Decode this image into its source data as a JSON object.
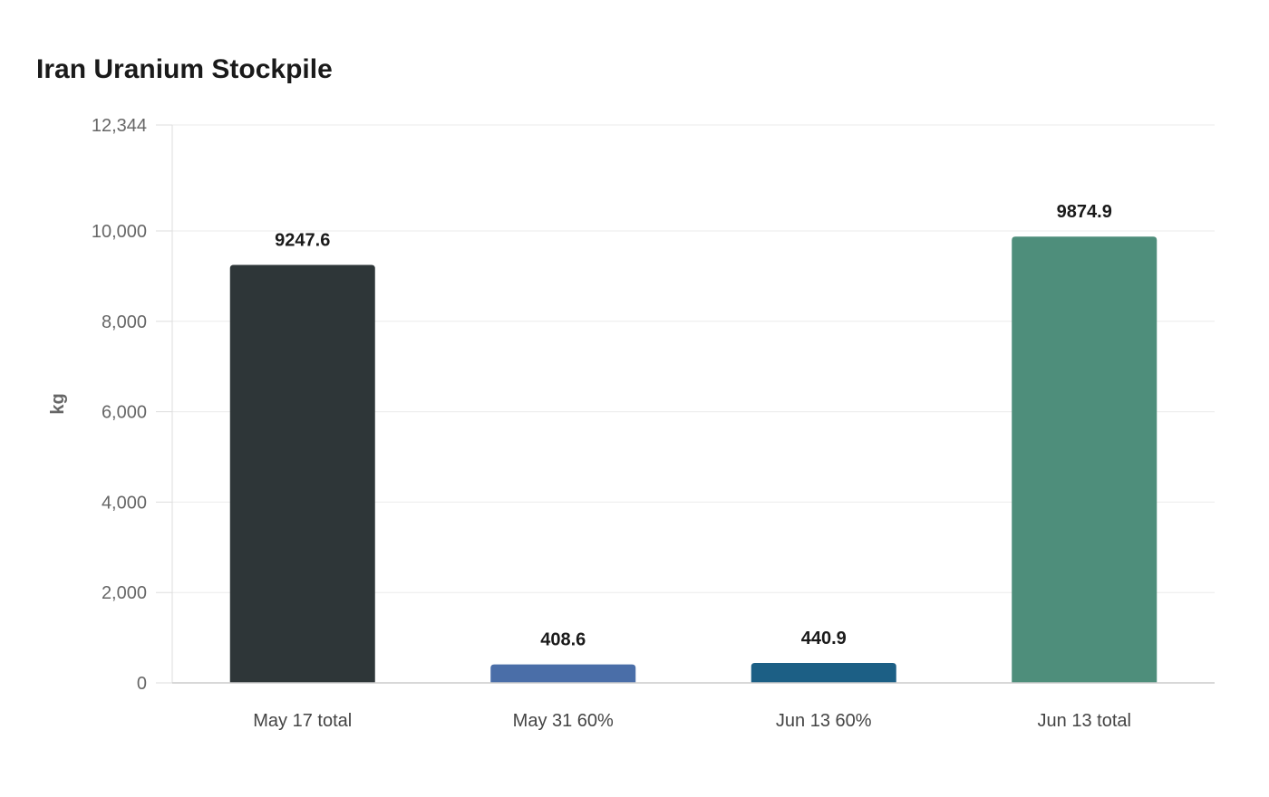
{
  "chart_data": {
    "type": "bar",
    "title": "Iran Uranium Stockpile",
    "xlabel": "",
    "ylabel": "kg",
    "ylim": [
      0,
      12344
    ],
    "yticks": [
      0,
      2000,
      4000,
      6000,
      8000,
      10000,
      12344
    ],
    "ytick_labels": [
      "0",
      "2,000",
      "4,000",
      "6,000",
      "8,000",
      "10,000",
      "12,344"
    ],
    "categories": [
      "May 17 total",
      "May 31 60%",
      "Jun 13 60%",
      "Jun 13 total"
    ],
    "values": [
      9247.6,
      408.6,
      440.9,
      9874.9
    ],
    "data_labels": [
      "9247.6",
      "408.6",
      "440.9",
      "9874.9"
    ],
    "colors": [
      "#2e3638",
      "#4a6ea8",
      "#1c5f85",
      "#4e8e7b"
    ],
    "grid": true,
    "legend": "none"
  }
}
